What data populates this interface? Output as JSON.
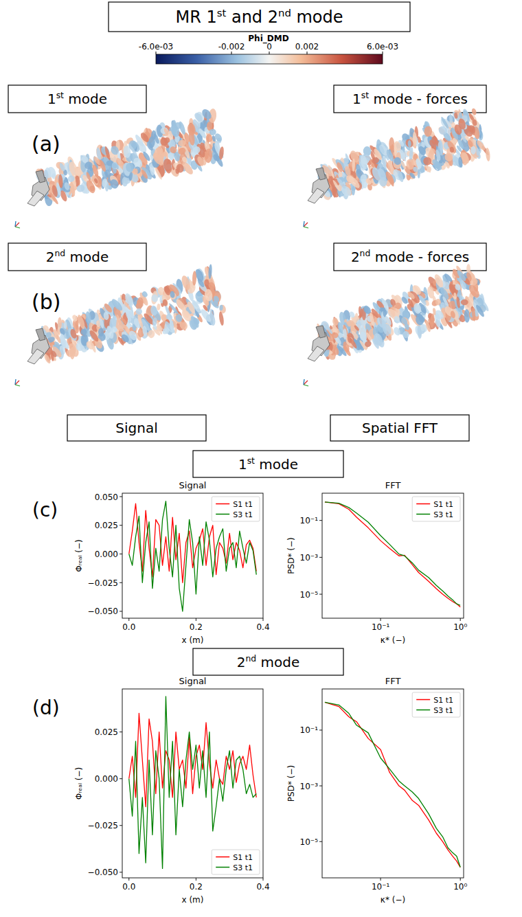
{
  "title": "MR 1st and 2nd mode",
  "colorbar": {
    "title": "Phi_DMD",
    "range": [
      -0.006,
      0.006
    ],
    "ticks": [
      {
        "value": -0.006,
        "label": "-6.0e-03"
      },
      -0.002,
      0,
      0.002,
      {
        "value": 0.006,
        "label": "6.0e-03"
      }
    ]
  },
  "panels": [
    {
      "letter": "(a)",
      "left": "1st mode",
      "right": "1st mode - forces"
    },
    {
      "letter": "(b)",
      "left": "2nd mode",
      "right": "2nd mode - forces"
    }
  ],
  "section_heads": [
    "Signal",
    "Spatial FFT"
  ],
  "chart_groups": [
    {
      "letter": "(c)",
      "title": "1st mode",
      "charts": [
        0,
        1
      ]
    },
    {
      "letter": "(d)",
      "title": "2nd mode",
      "charts": [
        2,
        3
      ]
    }
  ],
  "chart_data": [
    {
      "type": "line",
      "title": "Signal",
      "xlabel": "x (m)",
      "ylabel": "Φᵣₑₐₗ (−)",
      "x": [
        0,
        0.01,
        0.02,
        0.03,
        0.04,
        0.05,
        0.06,
        0.07,
        0.08,
        0.09,
        0.1,
        0.11,
        0.12,
        0.13,
        0.14,
        0.15,
        0.16,
        0.17,
        0.18,
        0.19,
        0.2,
        0.21,
        0.22,
        0.23,
        0.24,
        0.25,
        0.26,
        0.27,
        0.28,
        0.29,
        0.3,
        0.31,
        0.32,
        0.33,
        0.34,
        0.35,
        0.36,
        0.37,
        0.38
      ],
      "series": [
        {
          "name": "S1 t1",
          "color": "#ff0000",
          "values": [
            0.0,
            0.02,
            0.044,
            0.01,
            -0.015,
            0.038,
            0.005,
            -0.02,
            0.03,
            0.025,
            -0.01,
            0.015,
            -0.015,
            0.032,
            -0.005,
            0.018,
            -0.025,
            0.01,
            0.02,
            -0.012,
            0.005,
            0.012,
            0.022,
            -0.01,
            0.015,
            0.025,
            -0.018,
            0.01,
            0.005,
            -0.008,
            0.018,
            -0.005,
            0.01,
            0.003,
            -0.012,
            0.008,
            0.012,
            0.005,
            -0.015
          ]
        },
        {
          "name": "S3 t1",
          "color": "#008000",
          "values": [
            0.0,
            -0.01,
            0.015,
            0.033,
            -0.025,
            0.01,
            0.028,
            -0.03,
            0.005,
            -0.015,
            0.03,
            0.046,
            0.005,
            -0.02,
            0.025,
            -0.03,
            -0.05,
            -0.01,
            0.03,
            0.01,
            -0.035,
            0.015,
            -0.01,
            0.028,
            0.012,
            -0.02,
            0.005,
            0.015,
            0.022,
            -0.015,
            0.005,
            0.01,
            -0.012,
            0.02,
            0.005,
            -0.008,
            0.01,
            0.003,
            -0.018
          ]
        }
      ],
      "xlim": [
        -0.02,
        0.4
      ],
      "ylim": [
        -0.056,
        0.053
      ],
      "xticks": [
        {
          "value": 0,
          "label": "0.0"
        },
        0.2,
        0.4
      ],
      "yticks": [
        {
          "value": -0.05,
          "label": "−0.050"
        },
        {
          "value": -0.025,
          "label": "−0.025"
        },
        {
          "value": 0,
          "label": "0.000"
        },
        {
          "value": 0.025,
          "label": "0.025"
        },
        {
          "value": 0.05,
          "label": "0.050"
        }
      ],
      "legend": "upper right"
    },
    {
      "type": "line",
      "title": "FFT",
      "xlabel": "κ* (−)",
      "ylabel": "PSD* (−)",
      "log": true,
      "x": [
        0.02,
        0.03,
        0.04,
        0.05,
        0.07,
        0.1,
        0.13,
        0.17,
        0.2,
        0.25,
        0.3,
        0.4,
        0.5,
        0.6,
        0.7,
        0.8,
        0.9,
        1.0
      ],
      "series": [
        {
          "name": "S1 t1",
          "color": "#ff0000",
          "values": [
            1,
            0.8,
            0.4,
            0.15,
            0.04,
            0.008,
            0.003,
            0.0012,
            0.0013,
            0.0004,
            0.00015,
            5e-05,
            2e-05,
            1e-05,
            6e-06,
            4e-06,
            3e-06,
            2e-06
          ]
        },
        {
          "name": "S3 t1",
          "color": "#008000",
          "values": [
            1,
            0.85,
            0.5,
            0.25,
            0.08,
            0.015,
            0.005,
            0.0015,
            0.0012,
            0.0005,
            0.0002,
            8e-05,
            3e-05,
            1.5e-05,
            8e-06,
            5e-06,
            3e-06,
            2.5e-06
          ]
        }
      ],
      "xlim": [
        0.0185,
        1.1
      ],
      "ylim": [
        5e-07,
        3
      ],
      "xticks": [
        {
          "value": 0.1,
          "label": "10⁻¹"
        },
        {
          "value": 1,
          "label": "10⁰"
        }
      ],
      "yticks": [
        {
          "value": 1e-05,
          "label": "10⁻⁵"
        },
        {
          "value": 0.001,
          "label": "10⁻³"
        },
        {
          "value": 0.1,
          "label": "10⁻¹"
        }
      ],
      "legend": "upper right"
    },
    {
      "type": "line",
      "title": "Signal",
      "xlabel": "x (m)",
      "ylabel": "Φᵣₑₐₗ (−)",
      "x": [
        0,
        0.01,
        0.02,
        0.03,
        0.04,
        0.05,
        0.06,
        0.07,
        0.08,
        0.09,
        0.1,
        0.11,
        0.12,
        0.13,
        0.14,
        0.15,
        0.16,
        0.17,
        0.18,
        0.19,
        0.2,
        0.21,
        0.22,
        0.23,
        0.24,
        0.25,
        0.26,
        0.27,
        0.28,
        0.29,
        0.3,
        0.31,
        0.32,
        0.33,
        0.34,
        0.35,
        0.36,
        0.37,
        0.38
      ],
      "series": [
        {
          "name": "S1 t1",
          "color": "#ff0000",
          "values": [
            0.0,
            0.012,
            -0.01,
            0.035,
            0.01,
            -0.015,
            0.032,
            0.02,
            -0.008,
            0.025,
            -0.005,
            0.015,
            0.01,
            -0.01,
            0.025,
            0.005,
            0.01,
            -0.005,
            0.022,
            -0.008,
            0.012,
            0.018,
            0.005,
            0.03,
            0.008,
            -0.005,
            0.01,
            0.0,
            -0.003,
            0.012,
            0.005,
            0.015,
            -0.002,
            0.008,
            0.012,
            0.005,
            0.018,
            0.002,
            -0.01
          ]
        },
        {
          "name": "S3 t1",
          "color": "#008000",
          "values": [
            0.0,
            -0.02,
            0.02,
            -0.04,
            -0.01,
            -0.045,
            0.01,
            -0.03,
            0.015,
            0.0,
            -0.048,
            0.044,
            -0.01,
            0.02,
            -0.03,
            0.005,
            -0.015,
            0.01,
            0.025,
            0.005,
            0.018,
            -0.005,
            0.015,
            -0.01,
            0.025,
            -0.028,
            -0.015,
            0.0,
            -0.012,
            0.005,
            0.015,
            -0.005,
            0.01,
            0.012,
            0.005,
            -0.008,
            -0.003,
            -0.01,
            -0.008
          ]
        }
      ],
      "xlim": [
        -0.02,
        0.4
      ],
      "ylim": [
        -0.053,
        0.048
      ],
      "xticks": [
        {
          "value": 0,
          "label": "0.0"
        },
        0.2,
        0.4
      ],
      "yticks": [
        {
          "value": -0.05,
          "label": "−0.050"
        },
        {
          "value": -0.025,
          "label": "−0.025"
        },
        {
          "value": 0,
          "label": "0.000"
        },
        {
          "value": 0.025,
          "label": "0.025"
        }
      ],
      "legend": "lower right"
    },
    {
      "type": "line",
      "title": "FFT",
      "xlabel": "κ* (−)",
      "ylabel": "PSD* (−)",
      "log": true,
      "x": [
        0.02,
        0.03,
        0.04,
        0.05,
        0.07,
        0.1,
        0.13,
        0.17,
        0.2,
        0.25,
        0.3,
        0.4,
        0.5,
        0.6,
        0.7,
        0.8,
        0.9,
        1.0
      ],
      "series": [
        {
          "name": "S1 t1",
          "color": "#ff0000",
          "values": [
            1,
            0.7,
            0.3,
            0.2,
            0.05,
            0.02,
            0.003,
            0.001,
            0.0007,
            0.0003,
            0.0002,
            6e-05,
            2e-05,
            1e-05,
            5e-06,
            3e-06,
            2e-06,
            1.2e-06
          ]
        },
        {
          "name": "S3 t1",
          "color": "#008000",
          "values": [
            1,
            0.8,
            0.4,
            0.15,
            0.08,
            0.01,
            0.004,
            0.0015,
            0.001,
            0.0006,
            0.00035,
            0.0001,
            3e-05,
            1.5e-05,
            6e-06,
            4e-06,
            3e-06,
            1.2e-06
          ]
        }
      ],
      "xlim": [
        0.0185,
        1.1
      ],
      "ylim": [
        5e-07,
        3
      ],
      "xticks": [
        {
          "value": 0.1,
          "label": "10⁻¹"
        },
        {
          "value": 1,
          "label": "10⁰"
        }
      ],
      "yticks": [
        {
          "value": 1e-05,
          "label": "10⁻⁵"
        },
        {
          "value": 0.001,
          "label": "10⁻³"
        },
        {
          "value": 0.1,
          "label": "10⁻¹"
        }
      ],
      "legend": "upper right"
    }
  ]
}
